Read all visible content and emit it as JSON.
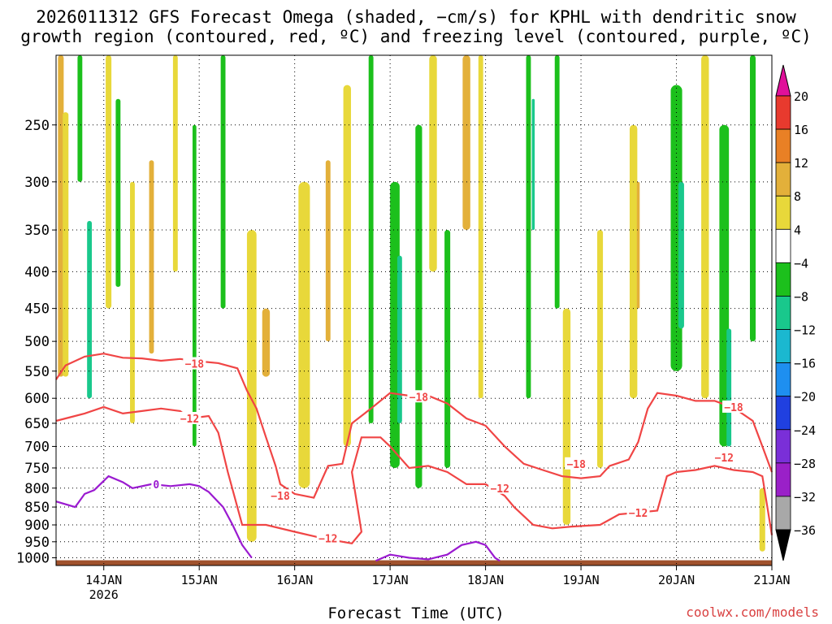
{
  "title_line1": "2026011312 GFS Forecast Omega (shaded, −cm/s) for KPHL with dendritic snow",
  "title_line2": "growth region (contoured, red, ºC) and freezing level (contoured, purple, ºC)",
  "xlabel": "Forecast Time (UTC)",
  "credit": "coolwx.com/models",
  "chart_data": {
    "type": "heatmap",
    "y_ticks": [
      250,
      300,
      350,
      400,
      450,
      500,
      550,
      600,
      650,
      700,
      750,
      800,
      850,
      900,
      950,
      1000
    ],
    "ylim": [
      1025,
      200
    ],
    "x_ticks": [
      {
        "day": 14,
        "label": "14JAN",
        "sublabel": "2026"
      },
      {
        "day": 15,
        "label": "15JAN"
      },
      {
        "day": 16,
        "label": "16JAN"
      },
      {
        "day": 17,
        "label": "17JAN"
      },
      {
        "day": 18,
        "label": "18JAN"
      },
      {
        "day": 19,
        "label": "19JAN"
      },
      {
        "day": 20,
        "label": "20JAN"
      },
      {
        "day": 21,
        "label": "21JAN"
      }
    ],
    "xlim": [
      13.5,
      21.0
    ],
    "grid": true,
    "colorbar": {
      "levels": [
        {
          "label": "20",
          "color": "#f04060"
        },
        {
          "label": "16",
          "color": "#e83a2e"
        },
        {
          "label": "12",
          "color": "#e98025"
        },
        {
          "label": "8",
          "color": "#e3b03a"
        },
        {
          "label": "4",
          "color": "#e8d83a"
        },
        {
          "label": "−4",
          "color": "#ffffff"
        },
        {
          "label": "−8",
          "color": "#1cc01c"
        },
        {
          "label": "−12",
          "color": "#19c88c"
        },
        {
          "label": "−16",
          "color": "#1bb8d0"
        },
        {
          "label": "−20",
          "color": "#1e8ff0"
        },
        {
          "label": "−24",
          "color": "#2040e0"
        },
        {
          "label": "−28",
          "color": "#7a2fd8"
        },
        {
          "label": "−32",
          "color": "#9a20c8"
        },
        {
          "label": "−36",
          "color": "#a8a8a8"
        }
      ],
      "top_cap_color": "#e0109a",
      "bottom_cap_color": "#000000"
    },
    "contours": [
      {
        "name": "dgz_top",
        "label": "−18",
        "color": "#f04545",
        "points": [
          [
            13.5,
            565
          ],
          [
            13.6,
            540
          ],
          [
            13.8,
            525
          ],
          [
            14.0,
            520
          ],
          [
            14.2,
            527
          ],
          [
            14.4,
            528
          ],
          [
            14.6,
            532
          ],
          [
            14.8,
            529
          ],
          [
            15.0,
            533
          ],
          [
            15.2,
            536
          ],
          [
            15.4,
            545
          ],
          [
            15.5,
            585
          ],
          [
            15.6,
            620
          ],
          [
            15.7,
            680
          ],
          [
            15.8,
            745
          ],
          [
            15.85,
            790
          ],
          [
            16.0,
            815
          ],
          [
            16.2,
            825
          ],
          [
            16.35,
            745
          ],
          [
            16.5,
            740
          ],
          [
            16.6,
            650
          ],
          [
            16.8,
            620
          ],
          [
            17.0,
            590
          ],
          [
            17.2,
            595
          ],
          [
            17.4,
            595
          ],
          [
            17.6,
            610
          ],
          [
            17.8,
            640
          ],
          [
            18.0,
            655
          ],
          [
            18.2,
            700
          ],
          [
            18.4,
            740
          ],
          [
            18.6,
            755
          ],
          [
            18.8,
            770
          ],
          [
            19.0,
            775
          ],
          [
            19.2,
            770
          ],
          [
            19.3,
            745
          ],
          [
            19.5,
            730
          ],
          [
            19.6,
            690
          ],
          [
            19.7,
            620
          ],
          [
            19.8,
            590
          ],
          [
            20.0,
            595
          ],
          [
            20.2,
            605
          ],
          [
            20.4,
            605
          ],
          [
            20.55,
            615
          ],
          [
            20.65,
            625
          ],
          [
            20.8,
            645
          ],
          [
            20.9,
            700
          ],
          [
            21.0,
            760
          ]
        ]
      },
      {
        "name": "dgz_bottom",
        "label": "−12",
        "color": "#f04545",
        "points": [
          [
            13.5,
            645
          ],
          [
            13.6,
            640
          ],
          [
            13.8,
            630
          ],
          [
            14.0,
            617
          ],
          [
            14.2,
            630
          ],
          [
            14.4,
            625
          ],
          [
            14.6,
            620
          ],
          [
            14.8,
            625
          ],
          [
            14.9,
            640
          ],
          [
            15.1,
            635
          ],
          [
            15.2,
            670
          ],
          [
            15.3,
            760
          ],
          [
            15.45,
            900
          ],
          [
            15.7,
            900
          ],
          [
            16.0,
            920
          ],
          [
            16.3,
            940
          ],
          [
            16.6,
            955
          ],
          [
            16.7,
            920
          ],
          [
            16.6,
            760
          ],
          [
            16.7,
            680
          ],
          [
            16.9,
            680
          ],
          [
            17.0,
            700
          ],
          [
            17.2,
            750
          ],
          [
            17.4,
            745
          ],
          [
            17.6,
            760
          ],
          [
            17.8,
            790
          ],
          [
            18.0,
            790
          ],
          [
            18.2,
            820
          ],
          [
            18.3,
            850
          ],
          [
            18.5,
            900
          ],
          [
            18.7,
            910
          ],
          [
            18.9,
            905
          ],
          [
            19.2,
            900
          ],
          [
            19.4,
            870
          ],
          [
            19.6,
            865
          ],
          [
            19.8,
            860
          ],
          [
            19.9,
            770
          ],
          [
            20.0,
            760
          ],
          [
            20.2,
            755
          ],
          [
            20.4,
            745
          ],
          [
            20.6,
            755
          ],
          [
            20.8,
            760
          ],
          [
            20.9,
            770
          ],
          [
            21.0,
            930
          ]
        ]
      },
      {
        "name": "freezing_level",
        "label": "0",
        "color": "#9a1ad0",
        "points": [
          [
            13.5,
            835
          ],
          [
            13.7,
            850
          ],
          [
            13.8,
            815
          ],
          [
            13.9,
            805
          ],
          [
            14.05,
            770
          ],
          [
            14.2,
            785
          ],
          [
            14.3,
            800
          ],
          [
            14.5,
            790
          ],
          [
            14.7,
            795
          ],
          [
            14.9,
            790
          ],
          [
            15.0,
            795
          ],
          [
            15.1,
            810
          ],
          [
            15.25,
            850
          ],
          [
            15.35,
            900
          ],
          [
            15.45,
            960
          ],
          [
            15.55,
            1000
          ]
        ]
      },
      {
        "name": "freezing_level_2",
        "label": "",
        "color": "#9a1ad0",
        "points": [
          [
            16.85,
            1010
          ],
          [
            17.0,
            990
          ],
          [
            17.2,
            1000
          ],
          [
            17.4,
            1005
          ],
          [
            17.6,
            990
          ],
          [
            17.75,
            960
          ],
          [
            17.9,
            950
          ],
          [
            18.0,
            960
          ],
          [
            18.1,
            1000
          ],
          [
            18.15,
            1010
          ]
        ]
      }
    ],
    "contour_labels": [
      {
        "text": "−18",
        "day": 14.95,
        "p": 537,
        "color": "#f04545"
      },
      {
        "text": "−12",
        "day": 14.9,
        "p": 640,
        "color": "#f04545"
      },
      {
        "text": "−18",
        "day": 15.85,
        "p": 820,
        "color": "#f04545"
      },
      {
        "text": "−12",
        "day": 16.35,
        "p": 940,
        "color": "#f04545"
      },
      {
        "text": "−18",
        "day": 17.3,
        "p": 597,
        "color": "#f04545"
      },
      {
        "text": "−12",
        "day": 18.15,
        "p": 800,
        "color": "#f04545"
      },
      {
        "text": "−18",
        "day": 18.95,
        "p": 740,
        "color": "#f04545"
      },
      {
        "text": "−12",
        "day": 19.6,
        "p": 865,
        "color": "#f04545"
      },
      {
        "text": "−18",
        "day": 20.6,
        "p": 617,
        "color": "#f04545"
      },
      {
        "text": "−12",
        "day": 20.5,
        "p": 725,
        "color": "#f04545"
      },
      {
        "text": "0",
        "day": 14.55,
        "p": 790,
        "color": "#9a1ad0"
      }
    ],
    "shading_blobs": [
      {
        "day": 13.55,
        "p0": 200,
        "p1": 560,
        "w": 0.06,
        "color": "#e3b03a"
      },
      {
        "day": 13.6,
        "p0": 240,
        "p1": 560,
        "w": 0.06,
        "color": "#e8d83a"
      },
      {
        "day": 13.75,
        "p0": 200,
        "p1": 300,
        "w": 0.05,
        "color": "#1cc01c"
      },
      {
        "day": 13.85,
        "p0": 340,
        "p1": 600,
        "w": 0.05,
        "color": "#19c88c"
      },
      {
        "day": 14.05,
        "p0": 200,
        "p1": 450,
        "w": 0.06,
        "color": "#e8d83a"
      },
      {
        "day": 14.15,
        "p0": 230,
        "p1": 420,
        "w": 0.05,
        "color": "#1cc01c"
      },
      {
        "day": 14.3,
        "p0": 300,
        "p1": 650,
        "w": 0.05,
        "color": "#e8d83a"
      },
      {
        "day": 14.5,
        "p0": 280,
        "p1": 520,
        "w": 0.05,
        "color": "#e3b03a"
      },
      {
        "day": 14.75,
        "p0": 200,
        "p1": 400,
        "w": 0.05,
        "color": "#e8d83a"
      },
      {
        "day": 14.95,
        "p0": 250,
        "p1": 700,
        "w": 0.04,
        "color": "#1cc01c"
      },
      {
        "day": 15.25,
        "p0": 200,
        "p1": 450,
        "w": 0.05,
        "color": "#1cc01c"
      },
      {
        "day": 15.55,
        "p0": 350,
        "p1": 950,
        "w": 0.1,
        "color": "#e8d83a"
      },
      {
        "day": 15.7,
        "p0": 450,
        "p1": 560,
        "w": 0.08,
        "color": "#e3b03a"
      },
      {
        "day": 16.1,
        "p0": 300,
        "p1": 800,
        "w": 0.12,
        "color": "#e8d83a"
      },
      {
        "day": 16.35,
        "p0": 280,
        "p1": 500,
        "w": 0.05,
        "color": "#e3b03a"
      },
      {
        "day": 16.55,
        "p0": 220,
        "p1": 700,
        "w": 0.08,
        "color": "#e8d83a"
      },
      {
        "day": 16.8,
        "p0": 200,
        "p1": 650,
        "w": 0.05,
        "color": "#1cc01c"
      },
      {
        "day": 17.05,
        "p0": 300,
        "p1": 750,
        "w": 0.1,
        "color": "#1cc01c"
      },
      {
        "day": 17.1,
        "p0": 380,
        "p1": 650,
        "w": 0.05,
        "color": "#19c88c"
      },
      {
        "day": 17.3,
        "p0": 250,
        "p1": 800,
        "w": 0.07,
        "color": "#1cc01c"
      },
      {
        "day": 17.45,
        "p0": 200,
        "p1": 400,
        "w": 0.08,
        "color": "#e8d83a"
      },
      {
        "day": 17.6,
        "p0": 350,
        "p1": 750,
        "w": 0.06,
        "color": "#1cc01c"
      },
      {
        "day": 17.8,
        "p0": 200,
        "p1": 350,
        "w": 0.08,
        "color": "#e3b03a"
      },
      {
        "day": 17.95,
        "p0": 200,
        "p1": 600,
        "w": 0.05,
        "color": "#e8d83a"
      },
      {
        "day": 18.45,
        "p0": 200,
        "p1": 600,
        "w": 0.05,
        "color": "#1cc01c"
      },
      {
        "day": 18.5,
        "p0": 230,
        "p1": 350,
        "w": 0.03,
        "color": "#19c88c"
      },
      {
        "day": 18.75,
        "p0": 200,
        "p1": 450,
        "w": 0.05,
        "color": "#1cc01c"
      },
      {
        "day": 18.85,
        "p0": 450,
        "p1": 900,
        "w": 0.08,
        "color": "#e8d83a"
      },
      {
        "day": 19.2,
        "p0": 350,
        "p1": 750,
        "w": 0.06,
        "color": "#e8d83a"
      },
      {
        "day": 19.55,
        "p0": 250,
        "p1": 600,
        "w": 0.08,
        "color": "#e8d83a"
      },
      {
        "day": 19.6,
        "p0": 300,
        "p1": 450,
        "w": 0.03,
        "color": "#e3b03a"
      },
      {
        "day": 20.0,
        "p0": 220,
        "p1": 550,
        "w": 0.12,
        "color": "#1cc01c"
      },
      {
        "day": 20.05,
        "p0": 300,
        "p1": 480,
        "w": 0.06,
        "color": "#19c88c"
      },
      {
        "day": 20.3,
        "p0": 200,
        "p1": 600,
        "w": 0.08,
        "color": "#e8d83a"
      },
      {
        "day": 20.5,
        "p0": 250,
        "p1": 700,
        "w": 0.1,
        "color": "#1cc01c"
      },
      {
        "day": 20.55,
        "p0": 480,
        "p1": 700,
        "w": 0.05,
        "color": "#19c88c"
      },
      {
        "day": 20.8,
        "p0": 200,
        "p1": 500,
        "w": 0.06,
        "color": "#1cc01c"
      },
      {
        "day": 20.9,
        "p0": 800,
        "p1": 980,
        "w": 0.06,
        "color": "#e8d83a"
      }
    ],
    "terrain_color": "#a0522d",
    "terrain_top_p": 1008
  }
}
